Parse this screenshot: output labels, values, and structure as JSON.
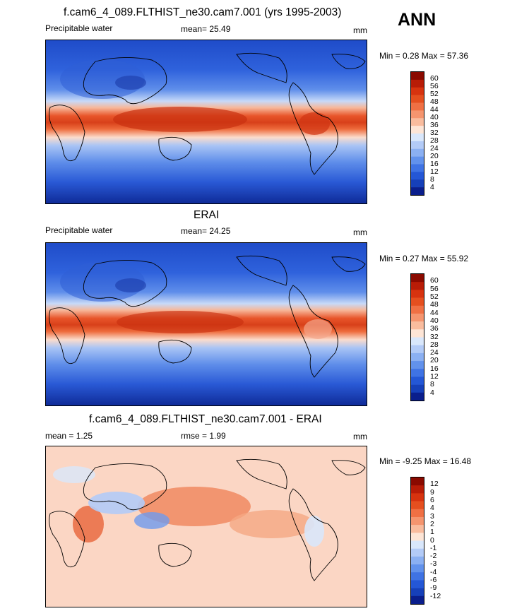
{
  "season": "ANN",
  "panels": [
    {
      "title": "f.cam6_4_089.FLTHIST_ne30.cam7.001 (yrs 1995-2003)",
      "left_label": "Precipitable water",
      "mid_label": "mean=  25.49",
      "unit": "mm",
      "minmax": "Min =   0.28 Max =  57.36",
      "levels": [
        "60",
        "56",
        "52",
        "48",
        "44",
        "40",
        "36",
        "32",
        "28",
        "24",
        "20",
        "16",
        "12",
        "8",
        "4"
      ],
      "colors": [
        "#8a0a00",
        "#b81c07",
        "#d7330f",
        "#e54f1f",
        "#f07044",
        "#f5956f",
        "#f9bc9e",
        "#fde5d6",
        "#d9e7fb",
        "#b3cbf7",
        "#8bb0f2",
        "#6292ec",
        "#3f73e4",
        "#2457d6",
        "#1640b9",
        "#0a1e8c"
      ]
    },
    {
      "title": "ERAI",
      "left_label": "Precipitable water",
      "mid_label": "mean=  24.25",
      "unit": "mm",
      "minmax": "Min =   0.27 Max =  55.92",
      "levels": [
        "60",
        "56",
        "52",
        "48",
        "44",
        "40",
        "36",
        "32",
        "28",
        "24",
        "20",
        "16",
        "12",
        "8",
        "4"
      ],
      "colors": [
        "#8a0a00",
        "#b81c07",
        "#d7330f",
        "#e54f1f",
        "#f07044",
        "#f5956f",
        "#f9bc9e",
        "#fde5d6",
        "#d9e7fb",
        "#b3cbf7",
        "#8bb0f2",
        "#6292ec",
        "#3f73e4",
        "#2457d6",
        "#1640b9",
        "#0a1e8c"
      ]
    },
    {
      "title": "f.cam6_4_089.FLTHIST_ne30.cam7.001 - ERAI",
      "left_label": "mean =   1.25",
      "mid_label": "rmse =   1.99",
      "unit": "mm",
      "minmax": "Min =  -9.25 Max =  16.48",
      "levels": [
        "12",
        "9",
        "6",
        "4",
        "3",
        "2",
        "1",
        "0",
        "-1",
        "-2",
        "-3",
        "-4",
        "-6",
        "-9",
        "-12"
      ],
      "colors": [
        "#8a0a00",
        "#b81c07",
        "#d7330f",
        "#e54f1f",
        "#f07044",
        "#f5956f",
        "#f9bc9e",
        "#fde5d6",
        "#d9e7fb",
        "#b3cbf7",
        "#8bb0f2",
        "#6292ec",
        "#3f73e4",
        "#2457d6",
        "#1640b9",
        "#0a1e8c"
      ]
    }
  ]
}
